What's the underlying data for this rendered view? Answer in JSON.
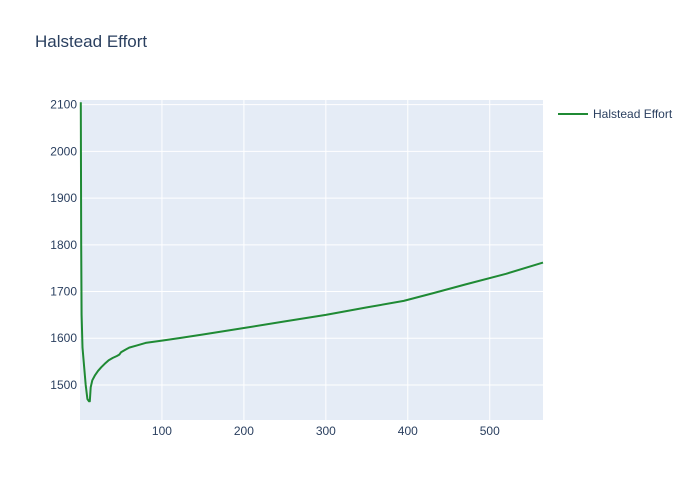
{
  "chart_data": {
    "type": "line",
    "title": "Halstead Effort",
    "xlabel": "",
    "ylabel": "",
    "xlim": [
      0,
      565
    ],
    "ylim": [
      1425,
      2110
    ],
    "xticks": [
      100,
      200,
      300,
      400,
      500
    ],
    "yticks": [
      1500,
      1600,
      1700,
      1800,
      1900,
      2000,
      2100
    ],
    "grid": true,
    "legend_position": "top-right",
    "series": [
      {
        "name": "Halstead Effort",
        "color": "#1f8a34",
        "x": [
          1,
          1.5,
          2,
          3,
          5,
          7,
          9,
          11,
          12,
          13,
          15,
          18,
          22,
          26,
          30,
          35,
          40,
          45,
          48,
          50,
          55,
          60,
          70,
          80,
          100,
          120,
          150,
          200,
          250,
          300,
          350,
          395,
          430,
          470,
          520,
          565
        ],
        "y": [
          2105,
          1800,
          1650,
          1580,
          1540,
          1500,
          1470,
          1465,
          1465,
          1495,
          1510,
          1520,
          1530,
          1538,
          1545,
          1553,
          1558,
          1562,
          1565,
          1570,
          1575,
          1580,
          1585,
          1590,
          1595,
          1600,
          1608,
          1622,
          1636,
          1650,
          1666,
          1680,
          1696,
          1715,
          1738,
          1762
        ]
      }
    ]
  }
}
